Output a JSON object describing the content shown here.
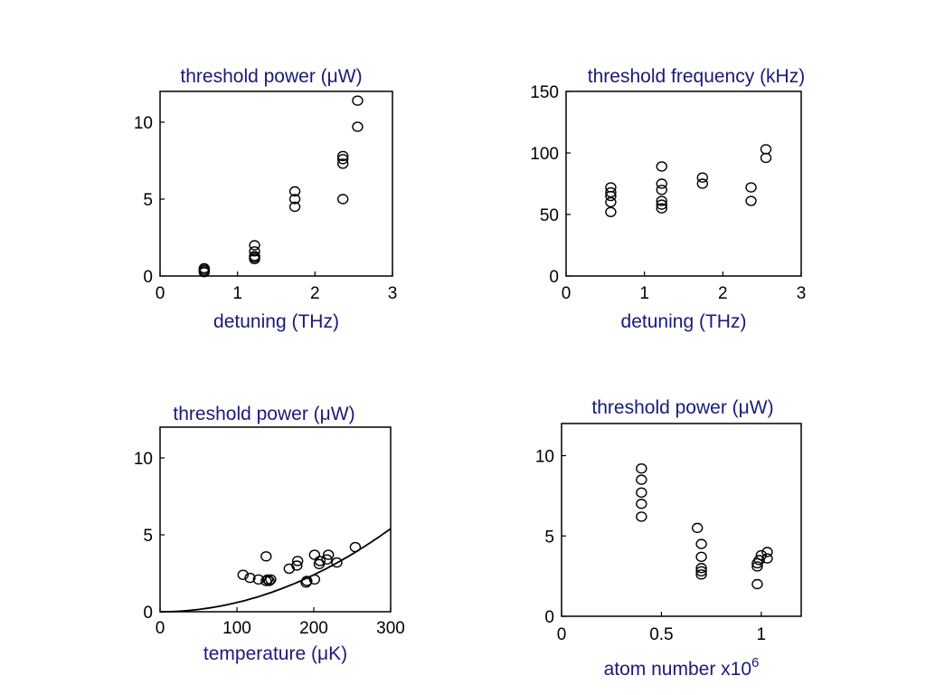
{
  "chart_data": [
    {
      "type": "scatter",
      "title": "threshold power (μW)",
      "xlabel": "detuning (THz)",
      "ylabel": "",
      "xlim": [
        0,
        3
      ],
      "ylim": [
        0,
        12
      ],
      "xticks": [
        0,
        1,
        2,
        3
      ],
      "yticks": [
        0,
        5,
        10
      ],
      "grid": false,
      "series": [
        {
          "points": [
            [
              0.57,
              0.3
            ],
            [
              0.57,
              0.4
            ],
            [
              0.57,
              0.5
            ],
            [
              0.57,
              0.25
            ],
            [
              1.22,
              1.2
            ],
            [
              1.22,
              1.3
            ],
            [
              1.22,
              1.6
            ],
            [
              1.22,
              2.0
            ],
            [
              1.22,
              1.1
            ],
            [
              1.74,
              4.5
            ],
            [
              1.74,
              5.0
            ],
            [
              1.74,
              5.5
            ],
            [
              2.36,
              5.0
            ],
            [
              2.36,
              7.3
            ],
            [
              2.36,
              7.6
            ],
            [
              2.36,
              7.8
            ],
            [
              2.55,
              9.7
            ],
            [
              2.55,
              11.4
            ]
          ]
        }
      ]
    },
    {
      "type": "scatter",
      "title": "threshold frequency (kHz)",
      "xlabel": "detuning (THz)",
      "ylabel": "",
      "xlim": [
        0,
        3
      ],
      "ylim": [
        0,
        150
      ],
      "xticks": [
        0,
        1,
        2,
        3
      ],
      "yticks": [
        0,
        50,
        100,
        150
      ],
      "grid": false,
      "series": [
        {
          "points": [
            [
              0.57,
              52
            ],
            [
              0.57,
              60
            ],
            [
              0.57,
              65
            ],
            [
              0.57,
              68
            ],
            [
              0.57,
              72
            ],
            [
              1.22,
              55
            ],
            [
              1.22,
              58
            ],
            [
              1.22,
              61
            ],
            [
              1.22,
              70
            ],
            [
              1.22,
              75
            ],
            [
              1.22,
              89
            ],
            [
              1.74,
              75
            ],
            [
              1.74,
              80
            ],
            [
              2.36,
              61
            ],
            [
              2.36,
              72
            ],
            [
              2.55,
              96
            ],
            [
              2.55,
              103
            ]
          ]
        }
      ]
    },
    {
      "type": "scatter",
      "title": "threshold power (μW)",
      "xlabel": "temperature (μK)",
      "ylabel": "",
      "xlim": [
        0,
        300
      ],
      "ylim": [
        0,
        12
      ],
      "xticks": [
        0,
        100,
        200,
        300
      ],
      "yticks": [
        0,
        5,
        10
      ],
      "grid": false,
      "fit_curve": {
        "form": "y = a*x^2",
        "a": 6e-05,
        "x_range": [
          0,
          300
        ]
      },
      "series": [
        {
          "points": [
            [
              108,
              2.4
            ],
            [
              117,
              2.2
            ],
            [
              128,
              2.1
            ],
            [
              138,
              2.0
            ],
            [
              140,
              2.1
            ],
            [
              142,
              2.0
            ],
            [
              144,
              2.1
            ],
            [
              138,
              3.6
            ],
            [
              168,
              2.8
            ],
            [
              178,
              3.0
            ],
            [
              179,
              3.3
            ],
            [
              190,
              1.9
            ],
            [
              191,
              2.0
            ],
            [
              201,
              2.1
            ],
            [
              201,
              3.7
            ],
            [
              207,
              3.1
            ],
            [
              208,
              3.3
            ],
            [
              217,
              3.4
            ],
            [
              219,
              3.7
            ],
            [
              230,
              3.2
            ],
            [
              254,
              4.2
            ]
          ]
        }
      ]
    },
    {
      "type": "scatter",
      "title": "threshold power (μW)",
      "xlabel": "atom number x10",
      "xlabel_superscript": "6",
      "ylabel": "",
      "xlim": [
        0,
        1.2
      ],
      "ylim": [
        0,
        12
      ],
      "xticks": [
        0,
        0.5,
        1
      ],
      "yticks": [
        0,
        5,
        10
      ],
      "grid": false,
      "series": [
        {
          "points": [
            [
              0.4,
              6.2
            ],
            [
              0.4,
              7.0
            ],
            [
              0.4,
              7.7
            ],
            [
              0.4,
              8.5
            ],
            [
              0.4,
              9.2
            ],
            [
              0.68,
              5.5
            ],
            [
              0.7,
              2.6
            ],
            [
              0.7,
              2.8
            ],
            [
              0.7,
              3.0
            ],
            [
              0.7,
              3.7
            ],
            [
              0.7,
              4.5
            ],
            [
              0.98,
              2.0
            ],
            [
              0.98,
              3.1
            ],
            [
              0.98,
              3.3
            ],
            [
              0.99,
              3.5
            ],
            [
              1.0,
              3.8
            ],
            [
              1.03,
              3.6
            ],
            [
              1.03,
              4.0
            ]
          ]
        }
      ]
    }
  ]
}
